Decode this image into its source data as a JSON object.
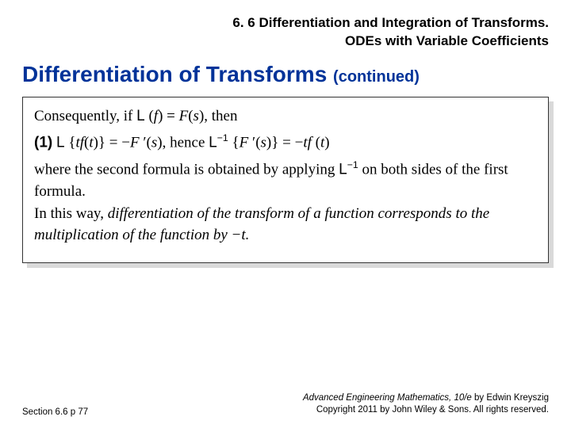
{
  "header": {
    "line1": "6. 6 Differentiation and Integration of Transforms.",
    "line2": "ODEs with Variable Coefficients"
  },
  "title": {
    "main": "Differentiation of Transforms",
    "suffix": "(continued)"
  },
  "body": {
    "p1_a": "Consequently, if ",
    "p1_b": " (",
    "p1_c": ") = ",
    "p1_d": "(",
    "p1_e": "), then",
    "eq_label": "(1)",
    "eq_a": " {",
    "eq_b": "(",
    "eq_c": ")} = −",
    "eq_d": " ′(",
    "eq_e": "), hence ",
    "eq_f": " {",
    "eq_g": " ′(",
    "eq_h": ")} = −",
    "eq_i": " (",
    "eq_j": ")",
    "sup_minus1": "−1",
    "sym_L": "L",
    "var_f": "f",
    "var_F": "F",
    "var_s": "s",
    "var_t": "t",
    "var_tf": "tf",
    "p3_a": "where the second formula is obtained by applying ",
    "p3_b": " on both sides of the first formula.",
    "p4": "In this way, ",
    "p4_it": "differentiation of the transform of a function corresponds to the multiplication of the function by −t."
  },
  "footer": {
    "left": "Section 6.6  p 77",
    "right1_it": "Advanced Engineering Mathematics, 10/e",
    "right1_rest": " by Edwin Kreyszig",
    "right2": "Copyright 2011 by John Wiley & Sons. All rights reserved."
  },
  "colors": {
    "title": "#003399",
    "shadow": "#d9d9d9",
    "text": "#000000",
    "background": "#ffffff"
  }
}
